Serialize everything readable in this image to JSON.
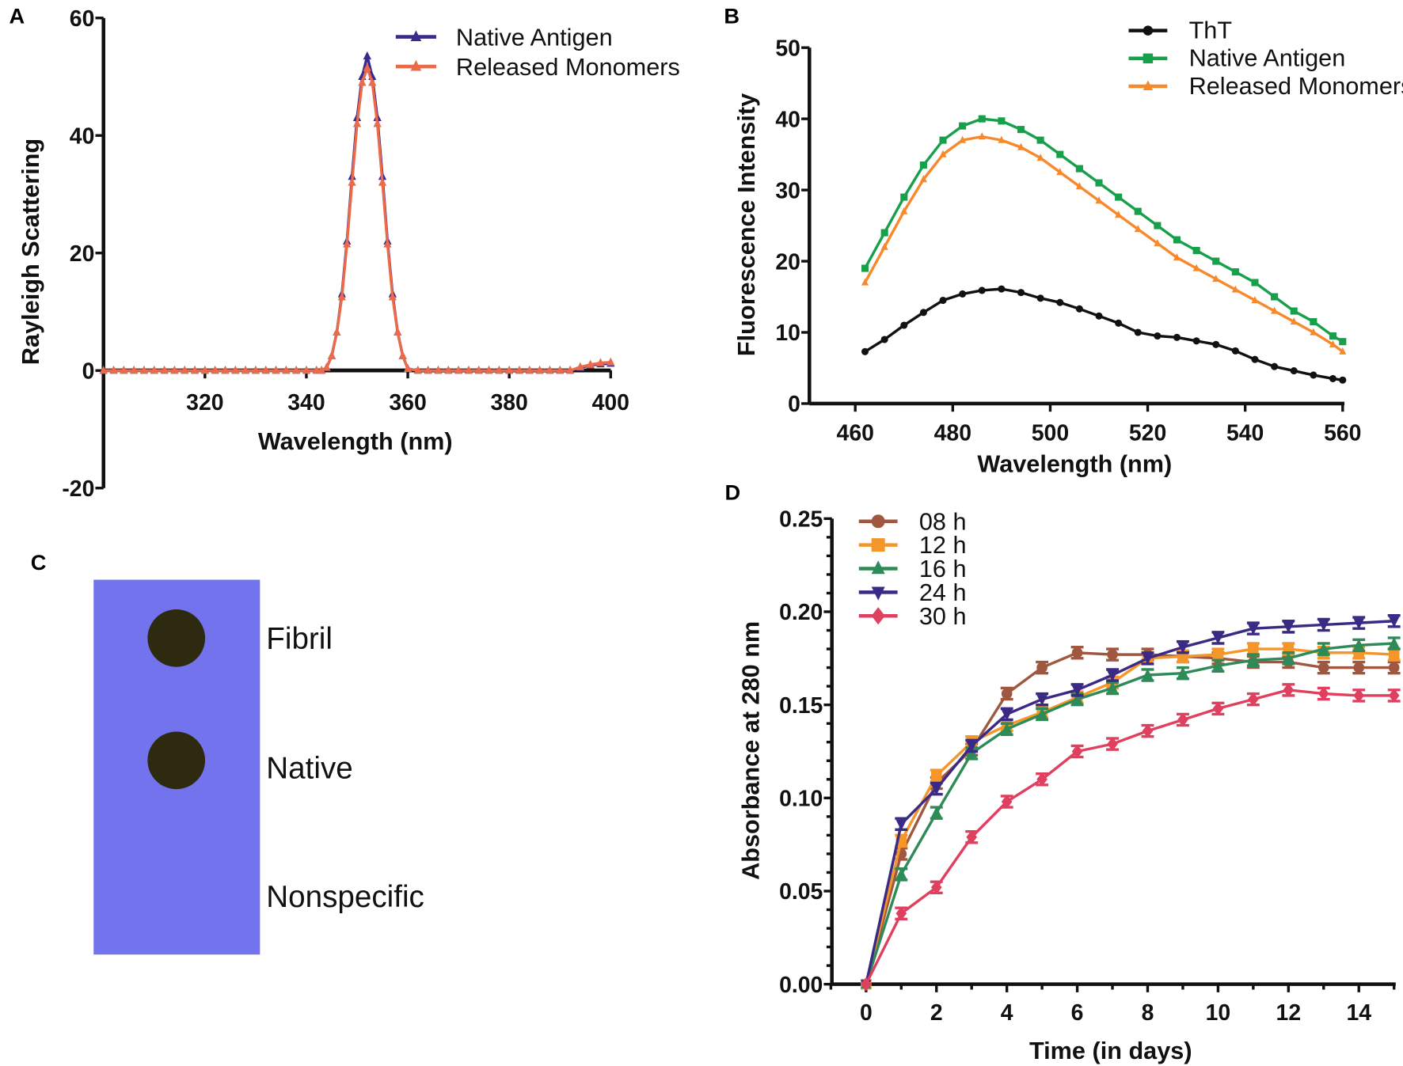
{
  "panel_labels": {
    "a": "A",
    "b": "B",
    "c": "C",
    "d": "D"
  },
  "chart_data": [
    {
      "id": "A",
      "type": "line",
      "xlabel": "Wavelength (nm)",
      "ylabel": "Rayleigh Scattering",
      "xlim": [
        300,
        400
      ],
      "ylim": [
        -20,
        60
      ],
      "xticks": [
        320,
        340,
        360,
        380,
        400
      ],
      "yticks": [
        -20,
        0,
        20,
        40,
        60
      ],
      "legend_position": "top-right",
      "x": [
        300,
        302,
        304,
        306,
        308,
        310,
        312,
        314,
        316,
        318,
        320,
        322,
        324,
        326,
        328,
        330,
        332,
        334,
        336,
        338,
        340,
        342,
        343,
        344,
        345,
        346,
        347,
        348,
        349,
        350,
        351,
        352,
        353,
        354,
        355,
        356,
        357,
        358,
        359,
        360,
        362,
        364,
        366,
        368,
        370,
        372,
        374,
        376,
        378,
        380,
        382,
        384,
        386,
        388,
        390,
        392,
        394,
        396,
        398,
        400
      ],
      "series": [
        {
          "name": "Native Antigen",
          "color": "#3b2a8c",
          "marker": "triangle",
          "values": [
            0,
            0,
            0,
            0,
            0,
            0,
            0,
            0,
            0,
            0,
            0,
            0,
            0,
            0,
            0,
            0,
            0,
            0,
            0,
            0,
            0,
            0,
            0,
            0.5,
            2.5,
            6.5,
            13,
            22,
            33,
            43,
            50,
            53.5,
            50,
            43,
            33,
            22,
            13,
            6.5,
            2.5,
            0.3,
            0,
            0,
            0,
            0,
            0,
            0,
            0,
            0,
            0,
            0,
            0,
            0,
            0,
            0,
            0,
            0,
            0.5,
            0.9,
            1.1,
            1.2
          ]
        },
        {
          "name": "Released Monomers",
          "color": "#ea6a4a",
          "marker": "triangle",
          "values": [
            0,
            0,
            0,
            0,
            0,
            0,
            0,
            0,
            0,
            0,
            0,
            0,
            0,
            0,
            0,
            0,
            0,
            0,
            0,
            0,
            0,
            0,
            0,
            0.5,
            2.5,
            6.5,
            12.5,
            21.5,
            32,
            42,
            49,
            51.5,
            49,
            42,
            32,
            21.5,
            12.5,
            6.5,
            2.5,
            0.3,
            0,
            0,
            0,
            0,
            0,
            0,
            0,
            0,
            0,
            0,
            0,
            0,
            0,
            0,
            0,
            0,
            0.6,
            1.0,
            1.3,
            1.4
          ]
        }
      ]
    },
    {
      "id": "B",
      "type": "line",
      "xlabel": "Wavelength (nm)",
      "ylabel": "Fluorescence Intensity",
      "xlim": [
        450,
        560
      ],
      "ylim": [
        0,
        50
      ],
      "xticks": [
        460,
        480,
        500,
        520,
        540,
        560
      ],
      "yticks": [
        0,
        10,
        20,
        30,
        40,
        50
      ],
      "legend_position": "top-right",
      "x": [
        462,
        466,
        470,
        474,
        478,
        482,
        486,
        490,
        494,
        498,
        502,
        506,
        510,
        514,
        518,
        522,
        526,
        530,
        534,
        538,
        542,
        546,
        550,
        554,
        558,
        560
      ],
      "series": [
        {
          "name": "ThT",
          "color": "#111111",
          "marker": "circle",
          "values": [
            7.3,
            9,
            11,
            12.8,
            14.5,
            15.4,
            15.9,
            16.1,
            15.6,
            14.8,
            14.2,
            13.3,
            12.3,
            11.3,
            10,
            9.5,
            9.3,
            8.8,
            8.3,
            7.4,
            6.2,
            5.2,
            4.6,
            4,
            3.5,
            3.3
          ]
        },
        {
          "name": "Native Antigen",
          "color": "#16a04a",
          "marker": "square",
          "values": [
            19,
            24,
            29,
            33.5,
            37,
            39,
            40,
            39.7,
            38.5,
            37,
            35,
            33,
            31,
            29,
            27,
            25,
            23,
            21.5,
            20,
            18.5,
            17,
            15,
            13,
            11.5,
            9.5,
            8.7
          ]
        },
        {
          "name": "Released Monomers",
          "color": "#f7892c",
          "marker": "triangle",
          "values": [
            17,
            22,
            27,
            31.5,
            35,
            37,
            37.5,
            37,
            36,
            34.5,
            32.5,
            30.5,
            28.5,
            26.5,
            24.5,
            22.5,
            20.5,
            19,
            17.5,
            16,
            14.5,
            13,
            11.5,
            10,
            8.3,
            7.3
          ]
        }
      ]
    },
    {
      "id": "D",
      "type": "line",
      "xlabel": "Time (in days)",
      "ylabel": "Absorbance at 280 nm",
      "xlim": [
        -1,
        15
      ],
      "ylim": [
        0,
        0.25
      ],
      "xticks": [
        0,
        2,
        4,
        6,
        8,
        10,
        12,
        14
      ],
      "yticks": [
        "0.00",
        "0.05",
        "0.10",
        "0.15",
        "0.20",
        "0.25"
      ],
      "legend_position": "top-left",
      "x": [
        0,
        1,
        2,
        3,
        4,
        5,
        6,
        7,
        8,
        9,
        10,
        11,
        12,
        13,
        14,
        15
      ],
      "error": 0.003,
      "series": [
        {
          "name": "08 h",
          "color": "#a0573f",
          "marker": "circle",
          "values": [
            0,
            0.07,
            0.108,
            0.126,
            0.156,
            0.17,
            0.178,
            0.177,
            0.177,
            0.176,
            0.175,
            0.173,
            0.173,
            0.17,
            0.17,
            0.17
          ]
        },
        {
          "name": "12 h",
          "color": "#f5962a",
          "marker": "square",
          "values": [
            0,
            0.077,
            0.112,
            0.13,
            0.139,
            0.146,
            0.154,
            0.162,
            0.175,
            0.176,
            0.177,
            0.18,
            0.18,
            0.178,
            0.178,
            0.177
          ]
        },
        {
          "name": "16 h",
          "color": "#2e8b57",
          "marker": "triangle",
          "values": [
            0,
            0.059,
            0.092,
            0.124,
            0.137,
            0.145,
            0.153,
            0.159,
            0.166,
            0.167,
            0.171,
            0.174,
            0.175,
            0.18,
            0.182,
            0.183
          ]
        },
        {
          "name": "24 h",
          "color": "#3b2a85",
          "marker": "triangle-down",
          "values": [
            0,
            0.086,
            0.105,
            0.128,
            0.145,
            0.153,
            0.158,
            0.166,
            0.175,
            0.181,
            0.186,
            0.191,
            0.192,
            0.193,
            0.194,
            0.195
          ]
        },
        {
          "name": "30 h",
          "color": "#e0405f",
          "marker": "diamond",
          "values": [
            0,
            0.038,
            0.052,
            0.079,
            0.098,
            0.11,
            0.125,
            0.129,
            0.136,
            0.142,
            0.148,
            0.153,
            0.158,
            0.156,
            0.155,
            0.155
          ]
        }
      ]
    }
  ],
  "dot_blot": {
    "membrane_color": "#7373ee",
    "spot_color": "#2e2a10",
    "labels": [
      "Fibril",
      "Native",
      "Nonspecific"
    ]
  }
}
